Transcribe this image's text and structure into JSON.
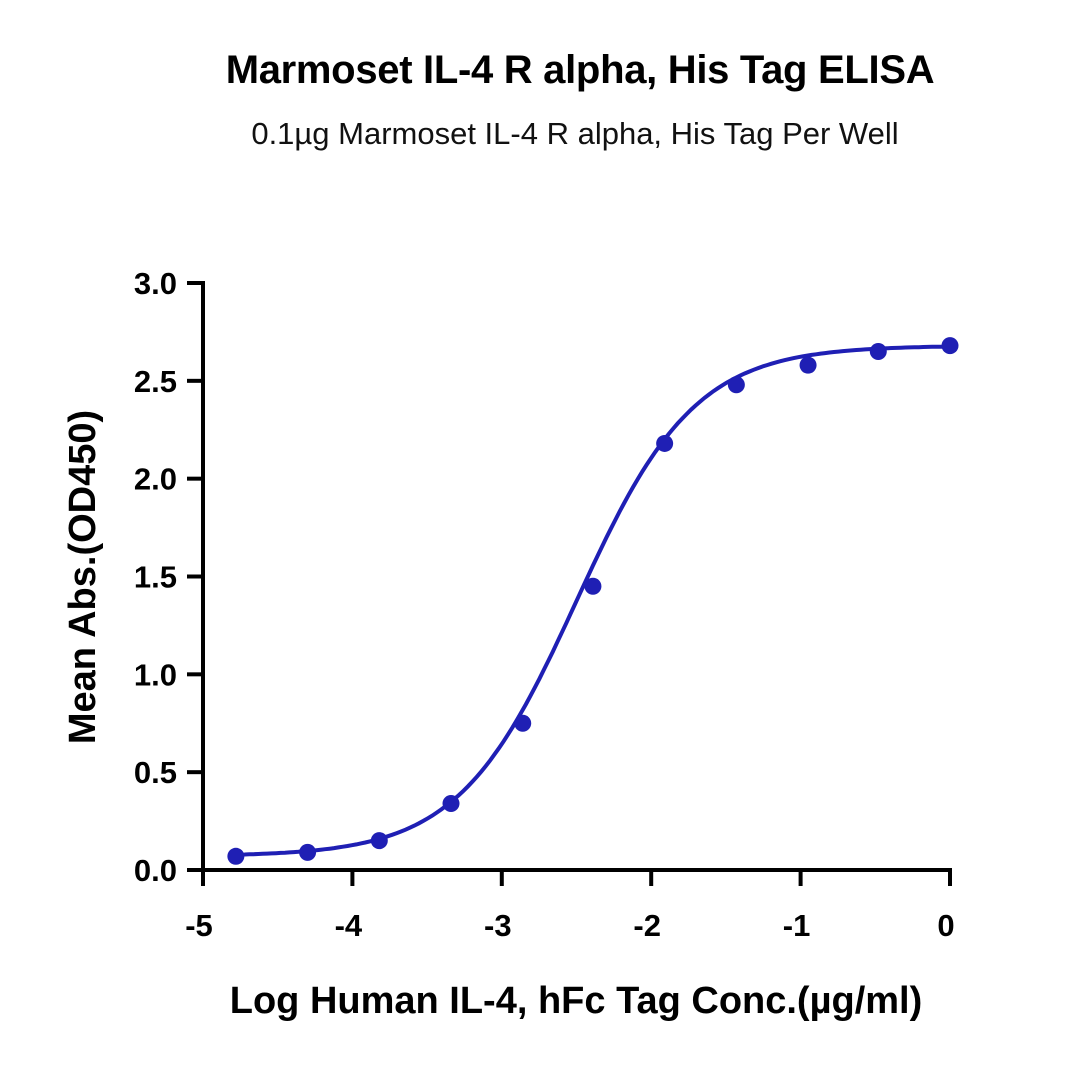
{
  "title": "Marmoset IL-4 R alpha, His Tag ELISA",
  "subtitle": "0.1µg Marmoset IL-4 R alpha, His Tag Per Well",
  "chart_data": {
    "type": "scatter",
    "title": "Marmoset IL-4 R alpha, His Tag ELISA",
    "subtitle": "0.1µg Marmoset IL-4 R alpha, His Tag Per Well",
    "xlabel": "Log Human IL-4, hFc Tag Conc.(µg/ml)",
    "ylabel": "Mean Abs.(OD450)",
    "xlim": [
      -5,
      0
    ],
    "ylim": [
      0,
      3.0
    ],
    "x_ticks": [
      "-5",
      "-4",
      "-3",
      "-2",
      "-1",
      "0"
    ],
    "y_ticks": [
      "0.0",
      "0.5",
      "1.0",
      "1.5",
      "2.0",
      "2.5",
      "3.0"
    ],
    "grid": false,
    "color": "#1f1fb4",
    "series": [
      {
        "x": [
          -4.78,
          -4.3,
          -3.82,
          -3.34,
          -2.86,
          -2.39,
          -1.91,
          -1.43,
          -0.95,
          -0.48,
          0.0
        ],
        "y": [
          0.07,
          0.09,
          0.15,
          0.34,
          0.75,
          1.45,
          2.18,
          2.48,
          2.58,
          2.65,
          2.68
        ],
        "fit": "four-parameter logistic curve"
      }
    ]
  }
}
